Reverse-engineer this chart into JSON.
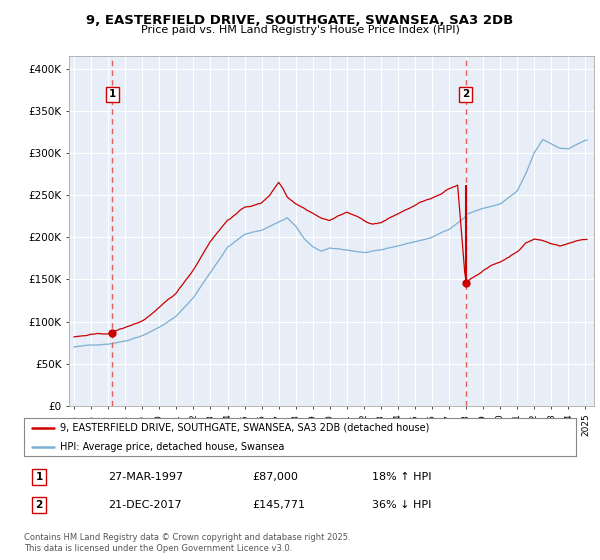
{
  "title": "9, EASTERFIELD DRIVE, SOUTHGATE, SWANSEA, SA3 2DB",
  "subtitle": "Price paid vs. HM Land Registry's House Price Index (HPI)",
  "legend_label_red": "9, EASTERFIELD DRIVE, SOUTHGATE, SWANSEA, SA3 2DB (detached house)",
  "legend_label_blue": "HPI: Average price, detached house, Swansea",
  "annotation1_date": "27-MAR-1997",
  "annotation1_price": "£87,000",
  "annotation1_hpi": "18% ↑ HPI",
  "annotation1_year": 1997.23,
  "annotation1_value": 87000,
  "annotation2_date": "21-DEC-2017",
  "annotation2_price": "£145,771",
  "annotation2_hpi": "36% ↓ HPI",
  "annotation2_year": 2017.97,
  "annotation2_value": 145771,
  "annotation2_prev_value": 262000,
  "ytick_values": [
    0,
    50000,
    100000,
    150000,
    200000,
    250000,
    300000,
    350000,
    400000
  ],
  "ylabel_ticks": [
    "£0",
    "£50K",
    "£100K",
    "£150K",
    "£200K",
    "£250K",
    "£300K",
    "£350K",
    "£400K"
  ],
  "ylim": [
    0,
    415000
  ],
  "xlim_start": 1994.7,
  "xlim_end": 2025.5,
  "fig_bg": "#ffffff",
  "plot_bg": "#e8eef7",
  "grid_color": "#ffffff",
  "red_line_color": "#cc0000",
  "blue_line_color": "#7bafd4",
  "marker_color": "#cc0000",
  "dashed_line_color": "#e06060",
  "footer_text": "Contains HM Land Registry data © Crown copyright and database right 2025.\nThis data is licensed under the Open Government Licence v3.0."
}
